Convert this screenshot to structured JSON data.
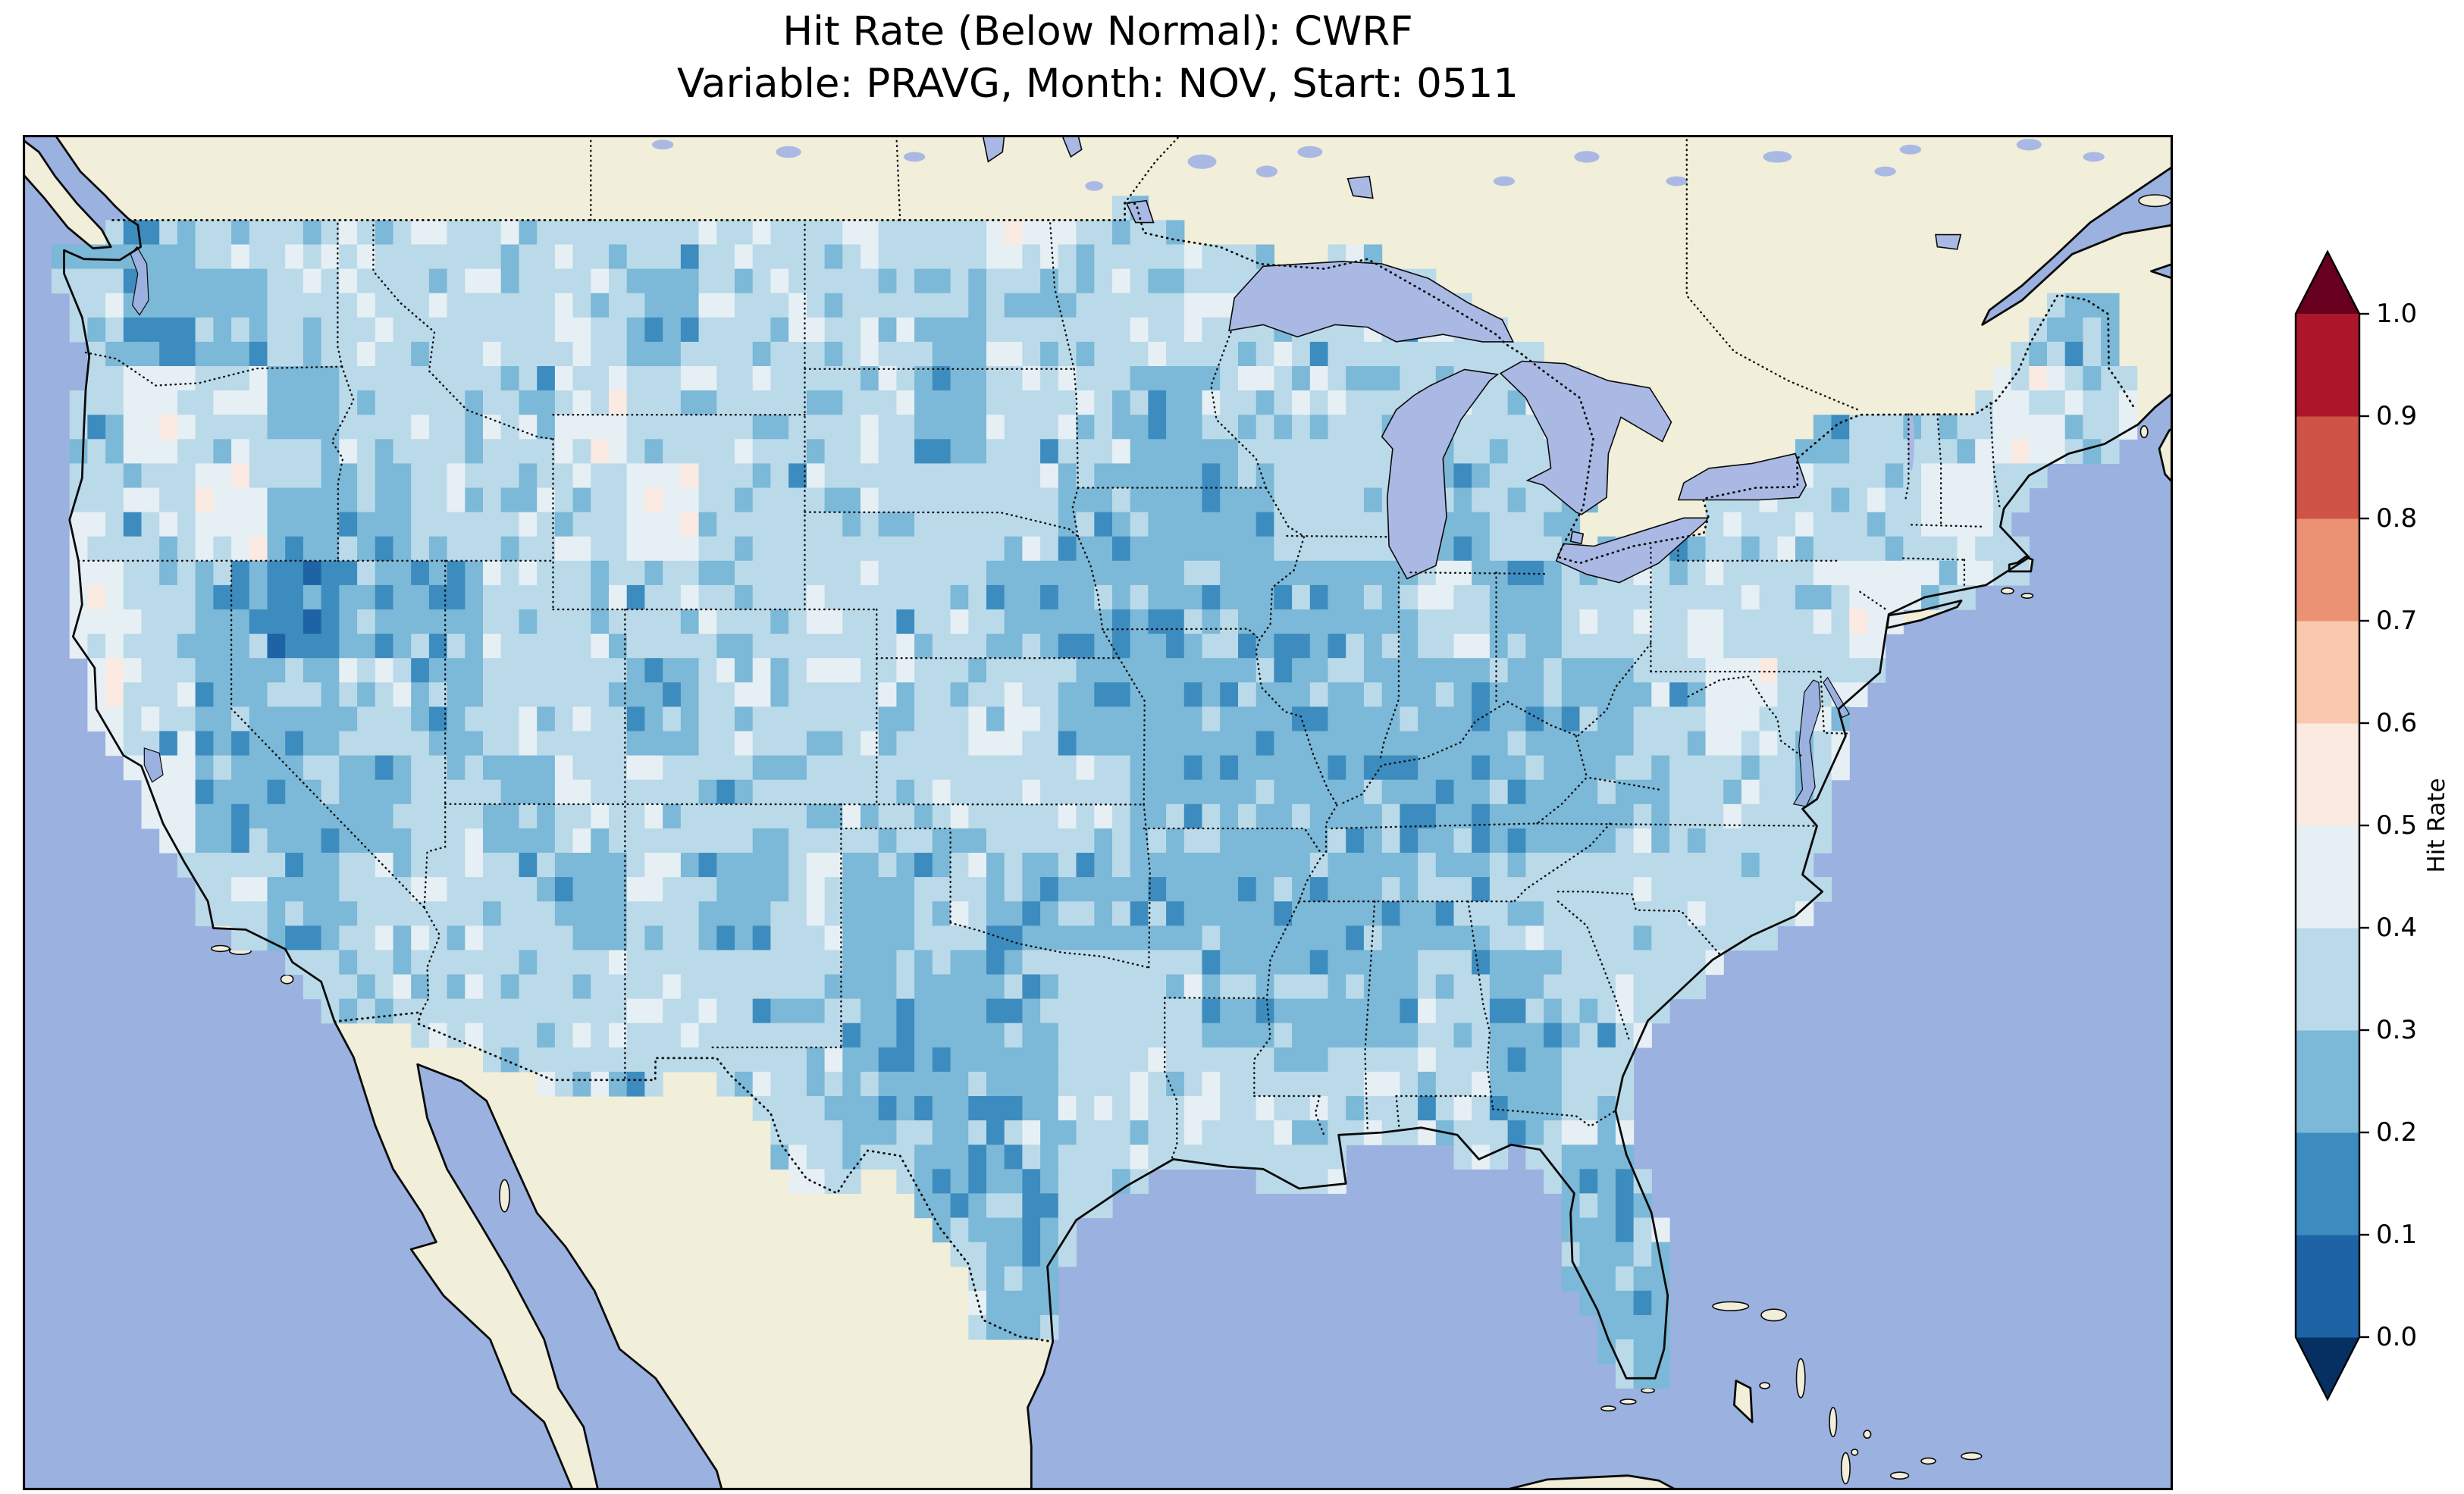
{
  "figure": {
    "title_line1": "Hit Rate (Below Normal): CWRF",
    "title_line2": "Variable: PRAVG, Month: NOV, Start: 0511"
  },
  "colorbar": {
    "label": "Hit Rate",
    "tick_labels_top_to_bottom": [
      "1.0",
      "0.9",
      "0.8",
      "0.7",
      "0.6",
      "0.5",
      "0.4",
      "0.3",
      "0.2",
      "0.1",
      "0.0"
    ],
    "segments_bottom_to_top": [
      "#1e63a6",
      "#3d8cbf",
      "#7cb8d7",
      "#badae9",
      "#e6eff4",
      "#faeae1",
      "#fac8ae",
      "#ec9274",
      "#cf5347",
      "#ab162a"
    ],
    "under_arrow_color": "#053061",
    "over_arrow_color": "#67001f",
    "outline_color": "#000000"
  },
  "chart_data": {
    "type": "heatmap",
    "title": "Hit Rate (Below Normal): CWRF",
    "subtitle": "Variable: PRAVG, Month: NOV, Start: 0511",
    "metric": "Hit Rate (Below Normal)",
    "model": "CWRF",
    "variable": "PRAVG",
    "month": "NOV",
    "start": "0511",
    "colorbar_label": "Hit Rate",
    "colormap": "RdBu_r, discrete 0.1 bins, extend both ends",
    "levels": [
      0.0,
      0.1,
      0.2,
      0.3,
      0.4,
      0.5,
      0.6,
      0.7,
      0.8,
      0.9,
      1.0
    ],
    "map_region": "Contiguous United States on a North America basemap, ~0.5 degree data grid clipped to the US border",
    "map_extent_lonlat": [
      -125.8,
      -66.0,
      22.9,
      50.75
    ],
    "grid_cell_degrees": 0.5,
    "value_summary": "Hit rates over CONUS fall almost entirely between 0.2 and 0.5 (blues). Large 0.2-0.3 patches cover Nevada, the central Midwest (Iowa/Missouri/Illinois), central and south Texas, the Tennessee/Kentucky and Mississippi/Alabama regions and central Florida; scattered 0.4-0.6 (near-white) cells appear in the far West; a few 0.0-0.2 dark-blue cells occur in Nevada. No values above 0.6 appear on the map.",
    "coarse_grid": {
      "description": "Approximate dominant color band per 2x2 degree block, rows north to south (50N..22N), columns west to east (125W..65W). Band digit k means hit-rate bin [k/10,(k+1)/10).",
      "lon_west": -125,
      "lat_north": 50,
      "cell_degrees": 2,
      "band_value_ranges": {
        "0": "0.0-0.1",
        "1": "0.1-0.2",
        "2": "0.2-0.3",
        "3": "0.3-0.4",
        "4": "0.4-0.5",
        "5": "0.5-0.6"
      },
      "bands_rows_north_to_south": [
        "223333333333343333333333333323",
        "322333332333233333333333332323",
        "343233343333233233333332233433",
        "334223334333332223323233334333",
        "432122333333322222232333343333",
        "432232332333332222222234333333",
        "342223233333333222222233333333",
        "333233323232322222223333333333",
        "333333333332223322232333333333",
        "333333333332223333332333333333",
        "333333333333223333333233333333",
        "333333333333323333333223333333",
        "333333333333333333333323333333",
        "333333333333333333333333333333"
      ]
    },
    "basemap_colors": {
      "ocean": "#9bb1e0",
      "lake": "#aab9e4",
      "land": "#f1eed9",
      "coastline": "#0a0a0a",
      "border": "#111111",
      "frame": "#000000"
    }
  }
}
